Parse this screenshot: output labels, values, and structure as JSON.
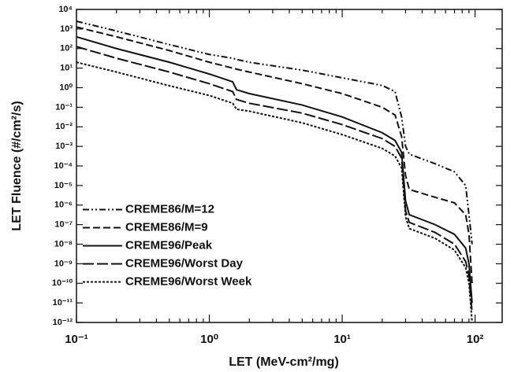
{
  "chart_data": {
    "type": "line",
    "xlabel": "LET (MeV-cm²/mg)",
    "ylabel": "LET Fluence (#/cm²/s)",
    "xscale": "log",
    "yscale": "log",
    "xlim": [
      0.1,
      160
    ],
    "ylim": [
      1e-12,
      10000
    ],
    "xticks": [
      {
        "value": 0.1,
        "label": "10⁻¹"
      },
      {
        "value": 1,
        "label": "10⁰"
      },
      {
        "value": 10,
        "label": "10¹"
      },
      {
        "value": 100,
        "label": "10²"
      }
    ],
    "yticks": [
      {
        "value": 1e-12,
        "label": "10⁻¹²"
      },
      {
        "value": 1e-11,
        "label": "10⁻¹¹"
      },
      {
        "value": 1e-10,
        "label": "10⁻¹⁰"
      },
      {
        "value": 1e-09,
        "label": "10⁻⁹"
      },
      {
        "value": 1e-08,
        "label": "10⁻⁸"
      },
      {
        "value": 1e-07,
        "label": "10⁻⁷"
      },
      {
        "value": 1e-06,
        "label": "10⁻⁶"
      },
      {
        "value": 1e-05,
        "label": "10⁻⁵"
      },
      {
        "value": 0.0001,
        "label": "10⁻⁴"
      },
      {
        "value": 0.001,
        "label": "10⁻³"
      },
      {
        "value": 0.01,
        "label": "10⁻²"
      },
      {
        "value": 0.1,
        "label": "10⁻¹"
      },
      {
        "value": 1,
        "label": "10⁰"
      },
      {
        "value": 10,
        "label": "10¹"
      },
      {
        "value": 100,
        "label": "10²"
      },
      {
        "value": 1000,
        "label": "10³"
      },
      {
        "value": 10000,
        "label": "10⁴"
      }
    ],
    "legend": "lower left",
    "x": [
      0.1,
      0.2,
      0.5,
      1,
      1.5,
      1.6,
      2,
      5,
      10,
      20,
      25,
      28,
      30,
      32,
      50,
      70,
      85,
      90,
      95
    ],
    "series": [
      {
        "name": "CREME86/M=12",
        "color": "#111111",
        "style": "dashdot",
        "values": [
          2500,
          790,
          160,
          50,
          32,
          28,
          20,
          7.9,
          3.2,
          1.3,
          0.63,
          0.032,
          0.001,
          0.0004,
          0.00013,
          5e-05,
          1e-05,
          3.2e-07,
          1e-08
        ]
      },
      {
        "name": "CREME86/M=9",
        "color": "#111111",
        "style": "dashed",
        "values": [
          1260,
          400,
          79,
          20,
          10,
          8.9,
          6.3,
          1.6,
          0.5,
          0.1,
          0.04,
          0.0032,
          3.2e-05,
          6.3e-06,
          2.5e-06,
          1.3e-06,
          3.2e-07,
          3.2e-08,
          1e-10
        ]
      },
      {
        "name": "CREME96/Peak",
        "color": "#111111",
        "style": "solid",
        "values": [
          400,
          100,
          20,
          5,
          2,
          0.79,
          0.5,
          0.13,
          0.032,
          0.005,
          0.002,
          0.0005,
          1.6e-06,
          3.2e-07,
          1e-07,
          3.2e-08,
          6.3e-09,
          1e-09,
          1e-11
        ]
      },
      {
        "name": "CREME96/Worst Day",
        "color": "#111111",
        "style": "longdash",
        "values": [
          126,
          32,
          6.3,
          1.6,
          0.63,
          0.25,
          0.16,
          0.05,
          0.013,
          0.0025,
          0.001,
          0.00025,
          5e-07,
          1.3e-07,
          4e-08,
          1e-08,
          1.3e-09,
          2.5e-10,
          3.2e-12
        ]
      },
      {
        "name": "CREME96/Worst Week",
        "color": "#111111",
        "style": "dotted",
        "values": [
          20,
          6.3,
          1.26,
          0.4,
          0.16,
          0.079,
          0.063,
          0.016,
          0.004,
          0.00079,
          0.00032,
          7.9e-05,
          2.5e-07,
          6.3e-08,
          2e-08,
          5e-09,
          6.3e-10,
          1e-10,
          1e-12
        ]
      }
    ]
  }
}
